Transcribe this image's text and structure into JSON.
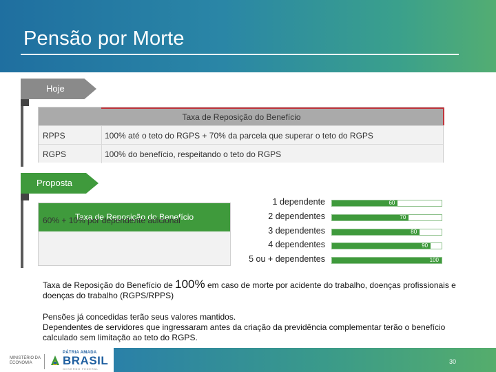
{
  "header": {
    "title": "Pensão por Morte"
  },
  "hoje": {
    "tag": "Hoje",
    "table_header": "Taxa de Reposição do Benefício",
    "rows": [
      {
        "regime": "RPPS",
        "rule": "100% até o teto do RGPS + 70% da parcela que superar o teto do RGPS"
      },
      {
        "regime": "RGPS",
        "rule": "100% do benefício, respeitando o teto do RGPS"
      }
    ]
  },
  "proposta": {
    "tag": "Proposta",
    "table_header": "Taxa de Reposição do Benefício",
    "table_value": "60% + 10% por dependente adicional"
  },
  "chart_data": {
    "type": "bar",
    "orientation": "horizontal",
    "categories": [
      "1 dependente",
      "2 dependentes",
      "3 dependentes",
      "4 dependentes",
      "5 ou + dependentes"
    ],
    "values": [
      60,
      70,
      80,
      90,
      100
    ],
    "xlim": [
      0,
      100
    ],
    "bar_color": "#3f9a3c"
  },
  "notes": {
    "note1_pre": "Taxa de Reposição do Benefício de ",
    "note1_big": "100%",
    "note1_post": " em caso de morte por acidente do trabalho, doenças profissionais e doenças do trabalho (RGPS/RPPS)",
    "note2_line1": "Pensões já concedidas terão seus valores mantidos.",
    "note2_line2": "Dependentes de servidores que ingressaram antes da criação da previdência complementar terão o benefício calculado sem limitação ao teto do RGPS."
  },
  "footer": {
    "ministry_line1": "MINISTÉRIO DA",
    "ministry_line2": "ECONOMIA",
    "brand_top": "PÁTRIA AMADA",
    "brand_main": "BRASIL",
    "brand_sub": "GOVERNO FEDERAL",
    "page_number": "30"
  },
  "colors": {
    "header_start": "#1f6fa0",
    "header_end": "#53ad72",
    "accent_green": "#3f9a3c",
    "accent_red": "#c0333a",
    "tag_gray": "#8a8a8a"
  }
}
